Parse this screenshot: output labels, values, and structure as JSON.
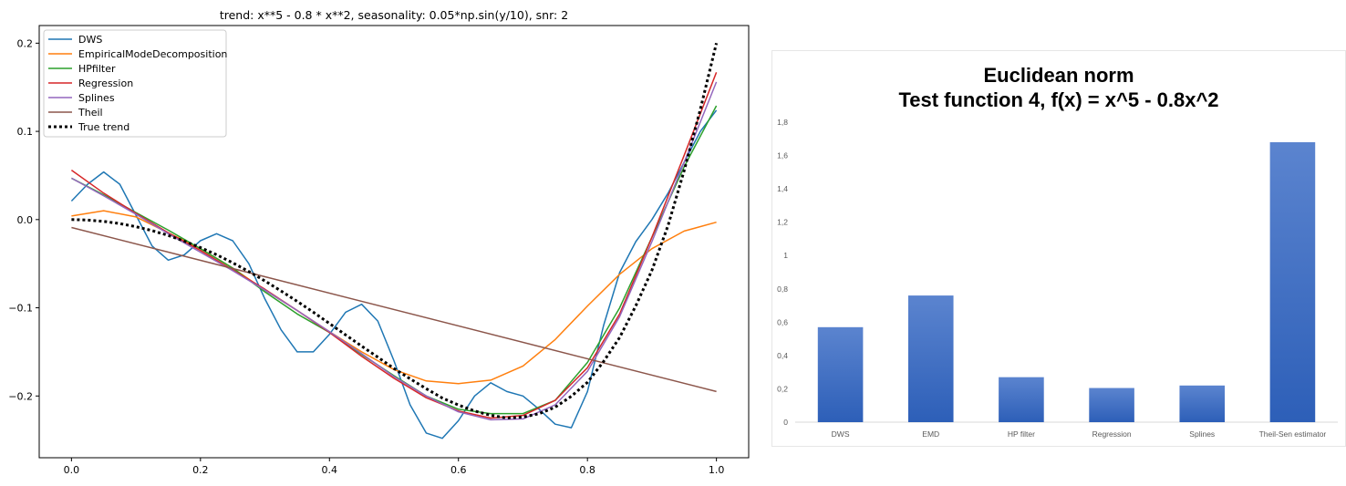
{
  "chart_data": [
    {
      "type": "line",
      "title": "trend: x**5 - 0.8 * x**2, seasonality: 0.05*np.sin(y/10), snr: 2",
      "xlabel": "",
      "ylabel": "",
      "xlim": [
        -0.05,
        1.05
      ],
      "ylim": [
        -0.27,
        0.22
      ],
      "xticks": [
        0.0,
        0.2,
        0.4,
        0.6,
        0.8,
        1.0
      ],
      "xtick_labels": [
        "0.0",
        "0.2",
        "0.4",
        "0.6",
        "0.8",
        "1.0"
      ],
      "yticks": [
        0.2,
        0.1,
        0.0,
        -0.1,
        -0.2
      ],
      "ytick_labels": [
        "0.2",
        "0.1",
        "0.0",
        "−0.1",
        "−0.2"
      ],
      "legend_position": "top-left",
      "series": [
        {
          "name": "DWS",
          "color": "#1f77b4",
          "style": "solid",
          "x": [
            0.0,
            0.025,
            0.05,
            0.075,
            0.1,
            0.125,
            0.15,
            0.175,
            0.2,
            0.225,
            0.25,
            0.275,
            0.3,
            0.325,
            0.35,
            0.375,
            0.4,
            0.425,
            0.45,
            0.475,
            0.5,
            0.525,
            0.55,
            0.575,
            0.6,
            0.625,
            0.65,
            0.675,
            0.7,
            0.725,
            0.75,
            0.775,
            0.8,
            0.825,
            0.85,
            0.875,
            0.9,
            0.925,
            0.95,
            0.975,
            1.0
          ],
          "y": [
            0.021,
            0.04,
            0.054,
            0.04,
            0.005,
            -0.03,
            -0.046,
            -0.04,
            -0.024,
            -0.016,
            -0.024,
            -0.05,
            -0.09,
            -0.125,
            -0.15,
            -0.15,
            -0.13,
            -0.105,
            -0.096,
            -0.115,
            -0.16,
            -0.21,
            -0.242,
            -0.248,
            -0.228,
            -0.2,
            -0.185,
            -0.195,
            -0.2,
            -0.215,
            -0.232,
            -0.236,
            -0.195,
            -0.12,
            -0.06,
            -0.025,
            0.0,
            0.03,
            0.065,
            0.1,
            0.124
          ]
        },
        {
          "name": "EmpiricalModeDecomposition",
          "color": "#ff7f0e",
          "style": "solid",
          "x": [
            0.0,
            0.05,
            0.1,
            0.15,
            0.2,
            0.25,
            0.3,
            0.35,
            0.4,
            0.45,
            0.5,
            0.55,
            0.6,
            0.65,
            0.7,
            0.75,
            0.8,
            0.85,
            0.9,
            0.95,
            1.0
          ],
          "y": [
            0.004,
            0.01,
            0.003,
            -0.015,
            -0.033,
            -0.055,
            -0.08,
            -0.103,
            -0.127,
            -0.15,
            -0.17,
            -0.183,
            -0.186,
            -0.182,
            -0.166,
            -0.136,
            -0.098,
            -0.062,
            -0.033,
            -0.013,
            -0.003
          ]
        },
        {
          "name": "HPfilter",
          "color": "#2ca02c",
          "style": "solid",
          "x": [
            0.0,
            0.05,
            0.1,
            0.15,
            0.2,
            0.25,
            0.3,
            0.35,
            0.4,
            0.45,
            0.5,
            0.55,
            0.6,
            0.65,
            0.7,
            0.75,
            0.8,
            0.85,
            0.9,
            0.95,
            1.0
          ],
          "y": [
            0.047,
            0.028,
            0.008,
            -0.012,
            -0.033,
            -0.055,
            -0.082,
            -0.107,
            -0.128,
            -0.153,
            -0.177,
            -0.2,
            -0.215,
            -0.22,
            -0.22,
            -0.205,
            -0.162,
            -0.1,
            -0.02,
            0.06,
            0.129
          ]
        },
        {
          "name": "Regression",
          "color": "#d62728",
          "style": "solid",
          "x": [
            0.0,
            0.05,
            0.1,
            0.15,
            0.2,
            0.25,
            0.3,
            0.35,
            0.4,
            0.45,
            0.5,
            0.55,
            0.6,
            0.65,
            0.7,
            0.75,
            0.8,
            0.85,
            0.9,
            0.95,
            1.0
          ],
          "y": [
            0.056,
            0.03,
            0.007,
            -0.015,
            -0.035,
            -0.057,
            -0.079,
            -0.103,
            -0.128,
            -0.155,
            -0.18,
            -0.202,
            -0.217,
            -0.225,
            -0.222,
            -0.205,
            -0.168,
            -0.107,
            -0.02,
            0.073,
            0.167
          ]
        },
        {
          "name": "Splines",
          "color": "#9467bd",
          "style": "solid",
          "x": [
            0.0,
            0.05,
            0.1,
            0.15,
            0.2,
            0.25,
            0.3,
            0.35,
            0.4,
            0.45,
            0.5,
            0.55,
            0.6,
            0.65,
            0.7,
            0.75,
            0.8,
            0.85,
            0.9,
            0.95,
            1.0
          ],
          "y": [
            0.047,
            0.027,
            0.006,
            -0.016,
            -0.037,
            -0.058,
            -0.08,
            -0.103,
            -0.127,
            -0.152,
            -0.178,
            -0.2,
            -0.218,
            -0.227,
            -0.226,
            -0.21,
            -0.172,
            -0.11,
            -0.025,
            0.065,
            0.156
          ]
        },
        {
          "name": "Theil",
          "color": "#8c564b",
          "style": "solid",
          "x": [
            0.0,
            1.0
          ],
          "y": [
            -0.009,
            -0.195
          ]
        },
        {
          "name": "True trend",
          "color": "#000000",
          "style": "dotted",
          "x": [
            0.0,
            0.025,
            0.05,
            0.075,
            0.1,
            0.125,
            0.15,
            0.175,
            0.2,
            0.225,
            0.25,
            0.275,
            0.3,
            0.325,
            0.35,
            0.375,
            0.4,
            0.425,
            0.45,
            0.475,
            0.5,
            0.525,
            0.55,
            0.575,
            0.6,
            0.625,
            0.65,
            0.675,
            0.7,
            0.725,
            0.75,
            0.775,
            0.8,
            0.825,
            0.85,
            0.875,
            0.9,
            0.925,
            0.95,
            0.975,
            1.0
          ],
          "y": [
            0.0,
            -0.0005,
            -0.002,
            -0.0045,
            -0.008,
            -0.0125,
            -0.018,
            -0.0245,
            -0.0317,
            -0.0399,
            -0.049,
            -0.0589,
            -0.0696,
            -0.0809,
            -0.0927,
            -0.105,
            -0.1178,
            -0.1308,
            -0.1435,
            -0.156,
            -0.1688,
            -0.1805,
            -0.1917,
            -0.2023,
            -0.2102,
            -0.217,
            -0.2219,
            -0.2249,
            -0.2239,
            -0.2201,
            -0.2127,
            -0.2003,
            -0.1845,
            -0.1608,
            -0.1336,
            -0.0978,
            -0.0575,
            -0.0066,
            0.0557,
            0.125,
            0.2
          ]
        }
      ]
    },
    {
      "type": "bar",
      "title": "Euclidean norm",
      "subtitle": "Test function 4, f(x) = x^5 - 0.8x^2",
      "xlabel": "",
      "ylabel": "",
      "categories": [
        "DWS",
        "EMD",
        "HP filter",
        "Regression",
        "Splines",
        "Theil-Sen estimator"
      ],
      "values": [
        0.57,
        0.76,
        0.27,
        0.205,
        0.22,
        1.68
      ],
      "ylim": [
        0,
        1.8
      ],
      "yticks": [
        0,
        0.2,
        0.4,
        0.6,
        0.8,
        1,
        1.2,
        1.4,
        1.6,
        1.8
      ],
      "ytick_labels": [
        "0",
        "0,2",
        "0,4",
        "0,6",
        "0,8",
        "1",
        "1,2",
        "1,4",
        "1,6",
        "1,8"
      ],
      "bar_color": "#4472c4",
      "grid": false,
      "legend": "none"
    }
  ]
}
